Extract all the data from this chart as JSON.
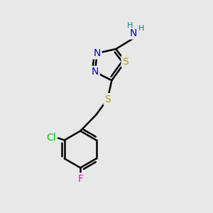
{
  "background_color": "#e8e8e8",
  "atom_colors": {
    "S": "#b8a000",
    "N": "#0000ee",
    "Cl": "#00cc00",
    "F": "#ff00cc",
    "H": "#008888",
    "C": "#000000"
  },
  "bond_color": "#000000",
  "bond_width": 1.8,
  "font_size_atom": 10,
  "font_size_H": 8
}
